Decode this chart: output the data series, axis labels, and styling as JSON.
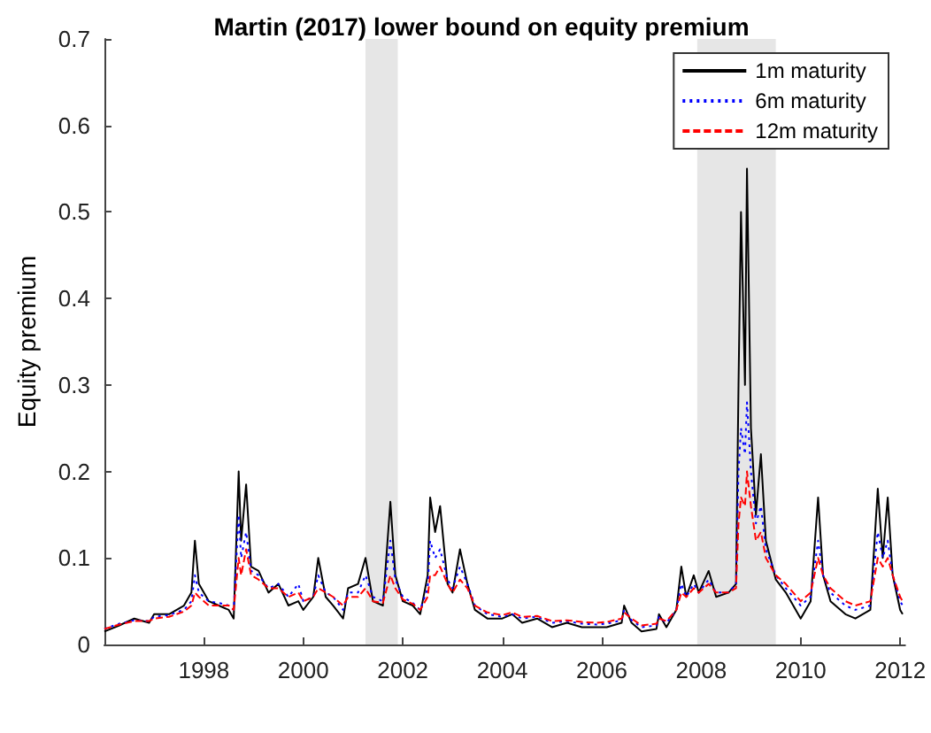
{
  "chart_data": {
    "type": "line",
    "title": "Martin (2017) lower bound on equity premium",
    "ylabel": "Equity premium",
    "x": [
      1996.0,
      1996.3,
      1996.6,
      1996.9,
      1997.0,
      1997.3,
      1997.6,
      1997.75,
      1997.82,
      1997.9,
      1998.1,
      1998.3,
      1998.5,
      1998.6,
      1998.7,
      1998.75,
      1998.85,
      1998.95,
      1999.1,
      1999.3,
      1999.5,
      1999.7,
      1999.9,
      2000.0,
      2000.2,
      2000.3,
      2000.45,
      2000.6,
      2000.8,
      2000.9,
      2001.1,
      2001.25,
      2001.4,
      2001.6,
      2001.75,
      2001.85,
      2002.0,
      2002.2,
      2002.35,
      2002.5,
      2002.55,
      2002.65,
      2002.75,
      2002.9,
      2003.0,
      2003.15,
      2003.3,
      2003.45,
      2003.7,
      2004.0,
      2004.2,
      2004.4,
      2004.7,
      2005.0,
      2005.3,
      2005.6,
      2005.9,
      2006.1,
      2006.4,
      2006.45,
      2006.6,
      2006.8,
      2007.1,
      2007.15,
      2007.3,
      2007.5,
      2007.6,
      2007.7,
      2007.85,
      2007.95,
      2008.15,
      2008.3,
      2008.55,
      2008.7,
      2008.75,
      2008.8,
      2008.88,
      2008.92,
      2009.0,
      2009.1,
      2009.2,
      2009.3,
      2009.5,
      2009.7,
      2010.0,
      2010.2,
      2010.35,
      2010.45,
      2010.6,
      2010.9,
      2011.1,
      2011.4,
      2011.55,
      2011.65,
      2011.75,
      2011.85,
      2012.0,
      2012.05
    ],
    "series": [
      {
        "name": "1m maturity",
        "color": "#000000",
        "line_style": "solid",
        "values": [
          0.015,
          0.022,
          0.03,
          0.025,
          0.035,
          0.035,
          0.045,
          0.06,
          0.12,
          0.07,
          0.05,
          0.045,
          0.04,
          0.03,
          0.2,
          0.12,
          0.185,
          0.09,
          0.085,
          0.06,
          0.07,
          0.045,
          0.05,
          0.04,
          0.055,
          0.1,
          0.055,
          0.045,
          0.03,
          0.065,
          0.07,
          0.1,
          0.05,
          0.045,
          0.165,
          0.08,
          0.05,
          0.045,
          0.035,
          0.08,
          0.17,
          0.13,
          0.16,
          0.07,
          0.06,
          0.11,
          0.07,
          0.04,
          0.03,
          0.03,
          0.035,
          0.025,
          0.03,
          0.02,
          0.025,
          0.02,
          0.02,
          0.02,
          0.025,
          0.045,
          0.025,
          0.015,
          0.018,
          0.035,
          0.02,
          0.04,
          0.09,
          0.055,
          0.08,
          0.06,
          0.085,
          0.055,
          0.06,
          0.07,
          0.3,
          0.5,
          0.3,
          0.55,
          0.25,
          0.15,
          0.22,
          0.12,
          0.075,
          0.06,
          0.03,
          0.05,
          0.17,
          0.08,
          0.05,
          0.035,
          0.03,
          0.04,
          0.18,
          0.1,
          0.17,
          0.08,
          0.04,
          0.035
        ]
      },
      {
        "name": "6m maturity",
        "color": "#0000ff",
        "line_style": "dotted",
        "values": [
          0.018,
          0.024,
          0.028,
          0.027,
          0.032,
          0.034,
          0.04,
          0.05,
          0.08,
          0.06,
          0.05,
          0.048,
          0.045,
          0.04,
          0.15,
          0.1,
          0.13,
          0.085,
          0.08,
          0.065,
          0.07,
          0.055,
          0.07,
          0.05,
          0.055,
          0.08,
          0.06,
          0.055,
          0.04,
          0.06,
          0.06,
          0.08,
          0.055,
          0.05,
          0.12,
          0.075,
          0.055,
          0.048,
          0.04,
          0.065,
          0.12,
          0.1,
          0.11,
          0.075,
          0.065,
          0.09,
          0.07,
          0.045,
          0.035,
          0.032,
          0.035,
          0.03,
          0.032,
          0.025,
          0.027,
          0.024,
          0.023,
          0.024,
          0.028,
          0.04,
          0.028,
          0.02,
          0.022,
          0.032,
          0.025,
          0.04,
          0.07,
          0.055,
          0.07,
          0.06,
          0.075,
          0.06,
          0.06,
          0.07,
          0.2,
          0.25,
          0.22,
          0.28,
          0.2,
          0.14,
          0.16,
          0.11,
          0.08,
          0.065,
          0.045,
          0.055,
          0.12,
          0.08,
          0.06,
          0.045,
          0.04,
          0.045,
          0.13,
          0.1,
          0.12,
          0.08,
          0.05,
          0.045
        ]
      },
      {
        "name": "12m maturity",
        "color": "#ff0000",
        "line_style": "dashed",
        "values": [
          0.018,
          0.023,
          0.027,
          0.027,
          0.03,
          0.032,
          0.038,
          0.045,
          0.06,
          0.055,
          0.045,
          0.045,
          0.045,
          0.04,
          0.1,
          0.08,
          0.11,
          0.08,
          0.075,
          0.065,
          0.065,
          0.055,
          0.06,
          0.05,
          0.055,
          0.065,
          0.06,
          0.055,
          0.045,
          0.055,
          0.055,
          0.065,
          0.05,
          0.048,
          0.08,
          0.065,
          0.052,
          0.047,
          0.04,
          0.055,
          0.08,
          0.08,
          0.09,
          0.07,
          0.06,
          0.075,
          0.065,
          0.045,
          0.037,
          0.034,
          0.037,
          0.032,
          0.033,
          0.027,
          0.028,
          0.026,
          0.025,
          0.026,
          0.03,
          0.037,
          0.03,
          0.022,
          0.024,
          0.03,
          0.027,
          0.04,
          0.06,
          0.055,
          0.065,
          0.06,
          0.07,
          0.06,
          0.06,
          0.065,
          0.14,
          0.17,
          0.16,
          0.2,
          0.16,
          0.12,
          0.13,
          0.1,
          0.08,
          0.07,
          0.05,
          0.06,
          0.1,
          0.08,
          0.065,
          0.05,
          0.045,
          0.05,
          0.1,
          0.09,
          0.1,
          0.08,
          0.055,
          0.05
        ]
      }
    ],
    "xlim": [
      1996,
      2012.1
    ],
    "xticks": [
      1998,
      2000,
      2002,
      2004,
      2006,
      2008,
      2010,
      2012
    ],
    "ylim": [
      0,
      0.7
    ],
    "yticks": [
      0,
      0.1,
      0.2,
      0.3,
      0.4,
      0.5,
      0.6,
      0.7
    ],
    "bands": [
      {
        "axis": "x",
        "from": 2001.25,
        "to": 2001.9,
        "color": "#e6e6e6"
      },
      {
        "axis": "x",
        "from": 2007.92,
        "to": 2009.5,
        "color": "#e6e6e6"
      }
    ],
    "grid": false,
    "legend": "top right"
  }
}
